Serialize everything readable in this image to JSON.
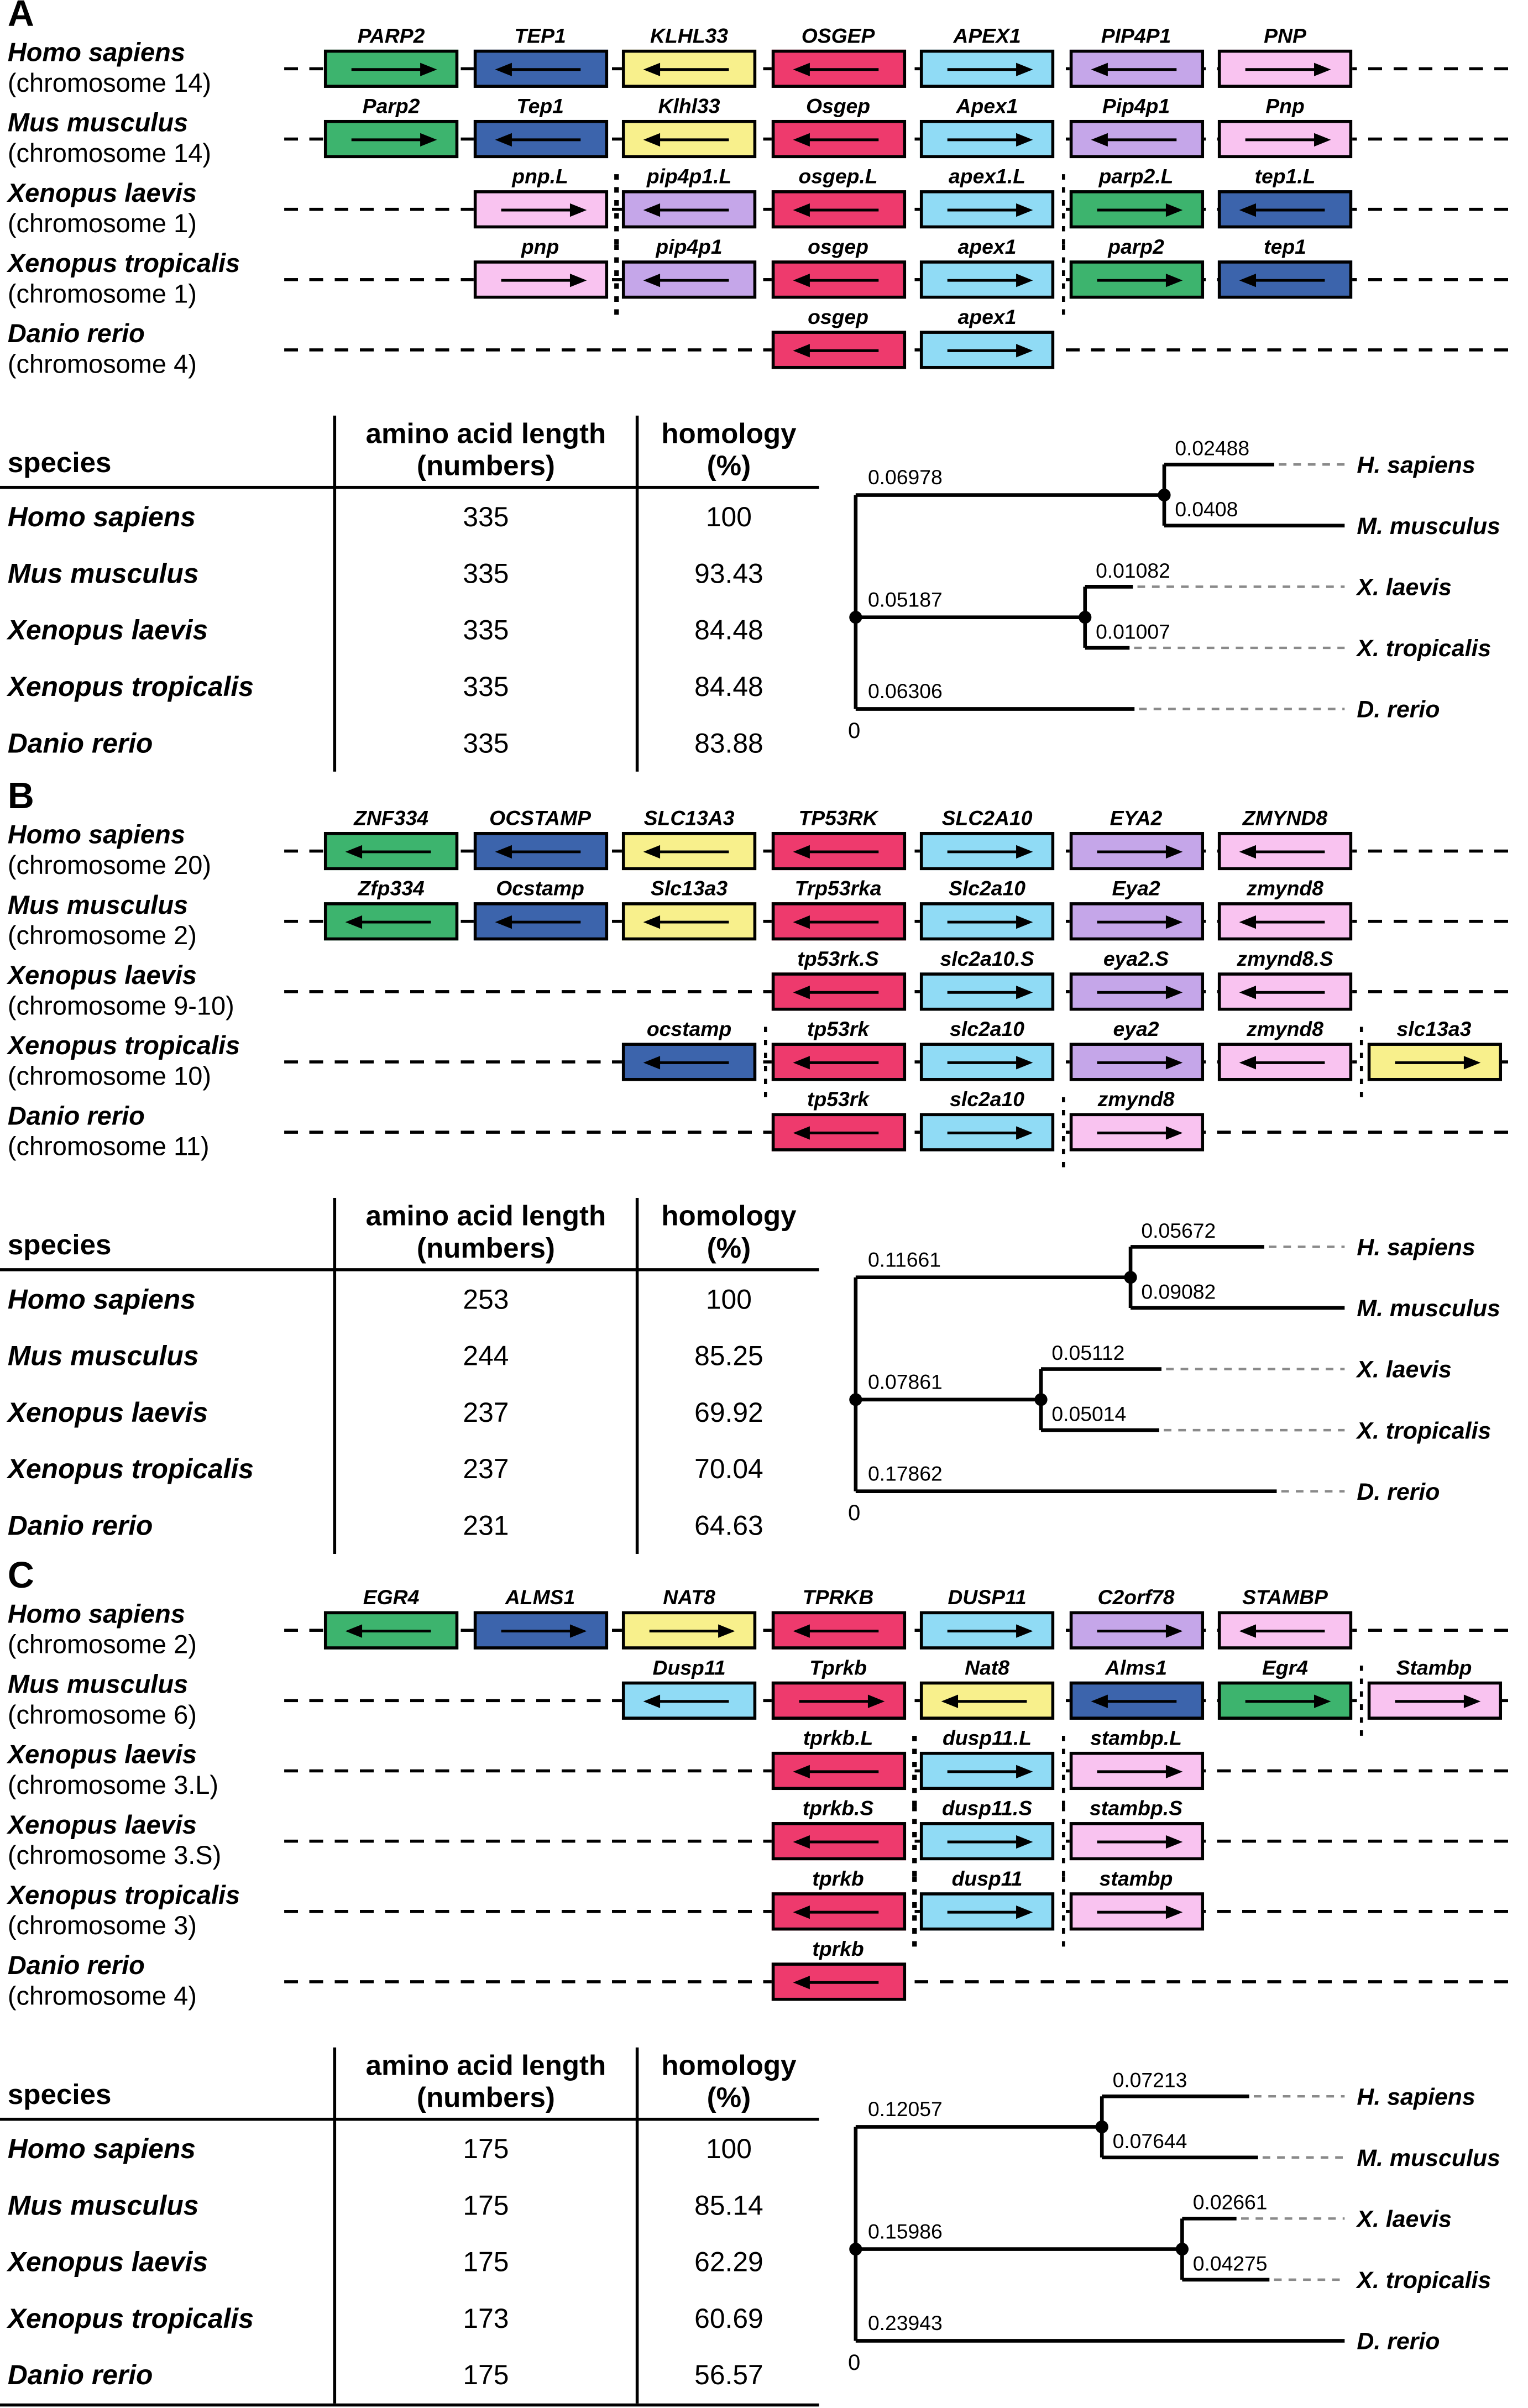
{
  "colors": {
    "green": "#3db46e",
    "blue": "#3c64ac",
    "yellow": "#f8f08c",
    "red": "#ee3a6d",
    "lightblue": "#90dbf5",
    "purple": "#c5a6e9",
    "pink": "#f9c3f0"
  },
  "panels": [
    {
      "label": "A",
      "synteny": {
        "rows": [
          {
            "species": "Homo sapiens",
            "chromosome": "(chromosome 14)",
            "genes": [
              {
                "name": "PARP2",
                "col": 1,
                "color": "green",
                "dir": "right"
              },
              {
                "name": "TEP1",
                "col": 2,
                "color": "blue",
                "dir": "left"
              },
              {
                "name": "KLHL33",
                "col": 3,
                "color": "yellow",
                "dir": "left"
              },
              {
                "name": "OSGEP",
                "col": 4,
                "color": "red",
                "dir": "left"
              },
              {
                "name": "APEX1",
                "col": 5,
                "color": "lightblue",
                "dir": "right"
              },
              {
                "name": "PIP4P1",
                "col": 6,
                "color": "purple",
                "dir": "left"
              },
              {
                "name": "PNP",
                "col": 7,
                "color": "pink",
                "dir": "right"
              }
            ]
          },
          {
            "species": "Mus musculus",
            "chromosome": "(chromosome 14)",
            "genes": [
              {
                "name": "Parp2",
                "col": 1,
                "color": "green",
                "dir": "right"
              },
              {
                "name": "Tep1",
                "col": 2,
                "color": "blue",
                "dir": "left"
              },
              {
                "name": "Klhl33",
                "col": 3,
                "color": "yellow",
                "dir": "left"
              },
              {
                "name": "Osgep",
                "col": 4,
                "color": "red",
                "dir": "left"
              },
              {
                "name": "Apex1",
                "col": 5,
                "color": "lightblue",
                "dir": "right"
              },
              {
                "name": "Pip4p1",
                "col": 6,
                "color": "purple",
                "dir": "left"
              },
              {
                "name": "Pnp",
                "col": 7,
                "color": "pink",
                "dir": "right"
              }
            ]
          },
          {
            "species": "Xenopus laevis",
            "chromosome": "(chromosome 1)",
            "breakpoints": [
              2,
              5
            ],
            "genes": [
              {
                "name": "pnp.L",
                "col": 2,
                "color": "pink",
                "dir": "right"
              },
              {
                "name": "pip4p1.L",
                "col": 3,
                "color": "purple",
                "dir": "left"
              },
              {
                "name": "osgep.L",
                "col": 4,
                "color": "red",
                "dir": "left"
              },
              {
                "name": "apex1.L",
                "col": 5,
                "color": "lightblue",
                "dir": "right"
              },
              {
                "name": "parp2.L",
                "col": 6,
                "color": "green",
                "dir": "right"
              },
              {
                "name": "tep1.L",
                "col": 7,
                "color": "blue",
                "dir": "left"
              }
            ]
          },
          {
            "species": "Xenopus tropicalis",
            "chromosome": "(chromosome 1)",
            "breakpoints": [
              2,
              5
            ],
            "genes": [
              {
                "name": "pnp",
                "col": 2,
                "color": "pink",
                "dir": "right"
              },
              {
                "name": "pip4p1",
                "col": 3,
                "color": "purple",
                "dir": "left"
              },
              {
                "name": "osgep",
                "col": 4,
                "color": "red",
                "dir": "left"
              },
              {
                "name": "apex1",
                "col": 5,
                "color": "lightblue",
                "dir": "right"
              },
              {
                "name": "parp2",
                "col": 6,
                "color": "green",
                "dir": "right"
              },
              {
                "name": "tep1",
                "col": 7,
                "color": "blue",
                "dir": "left"
              }
            ]
          },
          {
            "species": "Danio rerio",
            "chromosome": "(chromosome 4)",
            "genes": [
              {
                "name": "osgep",
                "col": 4,
                "color": "red",
                "dir": "left"
              },
              {
                "name": "apex1",
                "col": 5,
                "color": "lightblue",
                "dir": "right"
              }
            ]
          }
        ]
      },
      "table": {
        "headers": {
          "species": "species",
          "length_line1": "amino acid length",
          "length_line2": "(numbers)",
          "homology_line1": "homology",
          "homology_line2": "(%)"
        },
        "rows": [
          {
            "species": "Homo sapiens",
            "length": "335",
            "homology": "100"
          },
          {
            "species": "Mus musculus",
            "length": "335",
            "homology": "93.43"
          },
          {
            "species": "Xenopus laevis",
            "length": "335",
            "homology": "84.48"
          },
          {
            "species": "Xenopus tropicalis",
            "length": "335",
            "homology": "84.48"
          },
          {
            "species": "Danio rerio",
            "length": "335",
            "homology": "83.88"
          }
        ]
      },
      "tree": {
        "stem_hs_mm": "0.06978",
        "h_sapiens": "0.02488",
        "m_musculus": "0.0408",
        "stem_xenopus": "0.05187",
        "x_laevis": "0.01082",
        "x_tropicalis": "0.01007",
        "d_rerio": "0.06306",
        "scale_origin": "0",
        "taxa": [
          "H. sapiens",
          "M. musculus",
          "X. laevis",
          "X. tropicalis",
          "D. rerio"
        ]
      }
    },
    {
      "label": "B",
      "synteny": {
        "rows": [
          {
            "species": "Homo sapiens",
            "chromosome": "(chromosome 20)",
            "genes": [
              {
                "name": "ZNF334",
                "col": 1,
                "color": "green",
                "dir": "left"
              },
              {
                "name": "OCSTAMP",
                "col": 2,
                "color": "blue",
                "dir": "left"
              },
              {
                "name": "SLC13A3",
                "col": 3,
                "color": "yellow",
                "dir": "left"
              },
              {
                "name": "TP53RK",
                "col": 4,
                "color": "red",
                "dir": "left"
              },
              {
                "name": "SLC2A10",
                "col": 5,
                "color": "lightblue",
                "dir": "right"
              },
              {
                "name": "EYA2",
                "col": 6,
                "color": "purple",
                "dir": "right"
              },
              {
                "name": "ZMYND8",
                "col": 7,
                "color": "pink",
                "dir": "left"
              }
            ]
          },
          {
            "species": "Mus musculus",
            "chromosome": "(chromosome 2)",
            "genes": [
              {
                "name": "Zfp334",
                "col": 1,
                "color": "green",
                "dir": "left"
              },
              {
                "name": "Ocstamp",
                "col": 2,
                "color": "blue",
                "dir": "left"
              },
              {
                "name": "Slc13a3",
                "col": 3,
                "color": "yellow",
                "dir": "left"
              },
              {
                "name": "Trp53rka",
                "col": 4,
                "color": "red",
                "dir": "left"
              },
              {
                "name": "Slc2a10",
                "col": 5,
                "color": "lightblue",
                "dir": "right"
              },
              {
                "name": "Eya2",
                "col": 6,
                "color": "purple",
                "dir": "right"
              },
              {
                "name": "zmynd8",
                "col": 7,
                "color": "pink",
                "dir": "left"
              }
            ]
          },
          {
            "species": "Xenopus laevis",
            "chromosome": "(chromosome 9-10)",
            "genes": [
              {
                "name": "tp53rk.S",
                "col": 4,
                "color": "red",
                "dir": "left"
              },
              {
                "name": "slc2a10.S",
                "col": 5,
                "color": "lightblue",
                "dir": "right"
              },
              {
                "name": "eya2.S",
                "col": 6,
                "color": "purple",
                "dir": "right"
              },
              {
                "name": "zmynd8.S",
                "col": 7,
                "color": "pink",
                "dir": "left"
              }
            ]
          },
          {
            "species": "Xenopus tropicalis",
            "chromosome": "(chromosome 10)",
            "breakpoints": [
              3,
              7
            ],
            "genes": [
              {
                "name": "ocstamp",
                "col": 3,
                "color": "blue",
                "dir": "left"
              },
              {
                "name": "tp53rk",
                "col": 4,
                "color": "red",
                "dir": "left"
              },
              {
                "name": "slc2a10",
                "col": 5,
                "color": "lightblue",
                "dir": "right"
              },
              {
                "name": "eya2",
                "col": 6,
                "color": "purple",
                "dir": "right"
              },
              {
                "name": "zmynd8",
                "col": 7,
                "color": "pink",
                "dir": "left"
              },
              {
                "name": "slc13a3",
                "col": 8,
                "color": "yellow",
                "dir": "right"
              }
            ]
          },
          {
            "species": "Danio rerio",
            "chromosome": "(chromosome 11)",
            "breakpoints": [
              5
            ],
            "genes": [
              {
                "name": "tp53rk",
                "col": 4,
                "color": "red",
                "dir": "left"
              },
              {
                "name": "slc2a10",
                "col": 5,
                "color": "lightblue",
                "dir": "right"
              },
              {
                "name": "zmynd8",
                "col": 6,
                "color": "pink",
                "dir": "right"
              }
            ]
          }
        ]
      },
      "table": {
        "headers": {
          "species": "species",
          "length_line1": "amino acid length",
          "length_line2": "(numbers)",
          "homology_line1": "homology",
          "homology_line2": "(%)"
        },
        "rows": [
          {
            "species": "Homo sapiens",
            "length": "253",
            "homology": "100"
          },
          {
            "species": "Mus musculus",
            "length": "244",
            "homology": "85.25"
          },
          {
            "species": "Xenopus laevis",
            "length": "237",
            "homology": "69.92"
          },
          {
            "species": "Xenopus tropicalis",
            "length": "237",
            "homology": "70.04"
          },
          {
            "species": "Danio rerio",
            "length": "231",
            "homology": "64.63"
          }
        ]
      },
      "tree": {
        "stem_hs_mm": "0.11661",
        "h_sapiens": "0.05672",
        "m_musculus": "0.09082",
        "stem_xenopus": "0.07861",
        "x_laevis": "0.05112",
        "x_tropicalis": "0.05014",
        "d_rerio": "0.17862",
        "scale_origin": "0",
        "taxa": [
          "H. sapiens",
          "M. musculus",
          "X. laevis",
          "X. tropicalis",
          "D. rerio"
        ]
      }
    },
    {
      "label": "C",
      "synteny": {
        "rows": [
          {
            "species": "Homo sapiens",
            "chromosome": "(chromosome 2)",
            "genes": [
              {
                "name": "EGR4",
                "col": 1,
                "color": "green",
                "dir": "left"
              },
              {
                "name": "ALMS1",
                "col": 2,
                "color": "blue",
                "dir": "right"
              },
              {
                "name": "NAT8",
                "col": 3,
                "color": "yellow",
                "dir": "right"
              },
              {
                "name": "TPRKB",
                "col": 4,
                "color": "red",
                "dir": "left"
              },
              {
                "name": "DUSP11",
                "col": 5,
                "color": "lightblue",
                "dir": "right"
              },
              {
                "name": "C2orf78",
                "col": 6,
                "color": "purple",
                "dir": "right"
              },
              {
                "name": "STAMBP",
                "col": 7,
                "color": "pink",
                "dir": "left"
              }
            ]
          },
          {
            "species": "Mus musculus",
            "chromosome": "(chromosome 6)",
            "breakpoints": [
              7
            ],
            "genes": [
              {
                "name": "Dusp11",
                "col": 3,
                "color": "lightblue",
                "dir": "left"
              },
              {
                "name": "Tprkb",
                "col": 4,
                "color": "red",
                "dir": "right"
              },
              {
                "name": "Nat8",
                "col": 5,
                "color": "yellow",
                "dir": "left"
              },
              {
                "name": "Alms1",
                "col": 6,
                "color": "blue",
                "dir": "left"
              },
              {
                "name": "Egr4",
                "col": 7,
                "color": "green",
                "dir": "right"
              },
              {
                "name": "Stambp",
                "col": 8,
                "color": "pink",
                "dir": "right"
              }
            ]
          },
          {
            "species": "Xenopus laevis",
            "chromosome": "(chromosome 3.L)",
            "breakpoints": [
              4,
              5
            ],
            "genes": [
              {
                "name": "tprkb.L",
                "col": 4,
                "color": "red",
                "dir": "left"
              },
              {
                "name": "dusp11.L",
                "col": 5,
                "color": "lightblue",
                "dir": "right"
              },
              {
                "name": "stambp.L",
                "col": 6,
                "color": "pink",
                "dir": "right"
              }
            ]
          },
          {
            "species": "Xenopus laevis",
            "chromosome": "(chromosome 3.S)",
            "breakpoints": [
              4,
              5
            ],
            "genes": [
              {
                "name": "tprkb.S",
                "col": 4,
                "color": "red",
                "dir": "left"
              },
              {
                "name": "dusp11.S",
                "col": 5,
                "color": "lightblue",
                "dir": "right"
              },
              {
                "name": "stambp.S",
                "col": 6,
                "color": "pink",
                "dir": "right"
              }
            ]
          },
          {
            "species": "Xenopus tropicalis",
            "chromosome": "(chromosome 3)",
            "breakpoints": [
              4,
              5
            ],
            "genes": [
              {
                "name": "tprkb",
                "col": 4,
                "color": "red",
                "dir": "left"
              },
              {
                "name": "dusp11",
                "col": 5,
                "color": "lightblue",
                "dir": "right"
              },
              {
                "name": "stambp",
                "col": 6,
                "color": "pink",
                "dir": "right"
              }
            ]
          },
          {
            "species": "Danio rerio",
            "chromosome": "(chromosome 4)",
            "genes": [
              {
                "name": "tprkb",
                "col": 4,
                "color": "red",
                "dir": "left"
              }
            ]
          }
        ]
      },
      "table": {
        "headers": {
          "species": "species",
          "length_line1": "amino acid length",
          "length_line2": "(numbers)",
          "homology_line1": "homology",
          "homology_line2": "(%)"
        },
        "rows": [
          {
            "species": "Homo sapiens",
            "length": "175",
            "homology": "100"
          },
          {
            "species": "Mus musculus",
            "length": "175",
            "homology": "85.14"
          },
          {
            "species": "Xenopus laevis",
            "length": "175",
            "homology": "62.29"
          },
          {
            "species": "Xenopus tropicalis",
            "length": "173",
            "homology": "60.69"
          },
          {
            "species": "Danio rerio",
            "length": "175",
            "homology": "56.57"
          }
        ]
      },
      "tree": {
        "stem_hs_mm": "0.12057",
        "h_sapiens": "0.07213",
        "m_musculus": "0.07644",
        "stem_xenopus": "0.15986",
        "x_laevis": "0.02661",
        "x_tropicalis": "0.04275",
        "d_rerio": "0.23943",
        "scale_origin": "0",
        "taxa": [
          "H. sapiens",
          "M. musculus",
          "X. laevis",
          "X. tropicalis",
          "D. rerio"
        ]
      }
    }
  ]
}
